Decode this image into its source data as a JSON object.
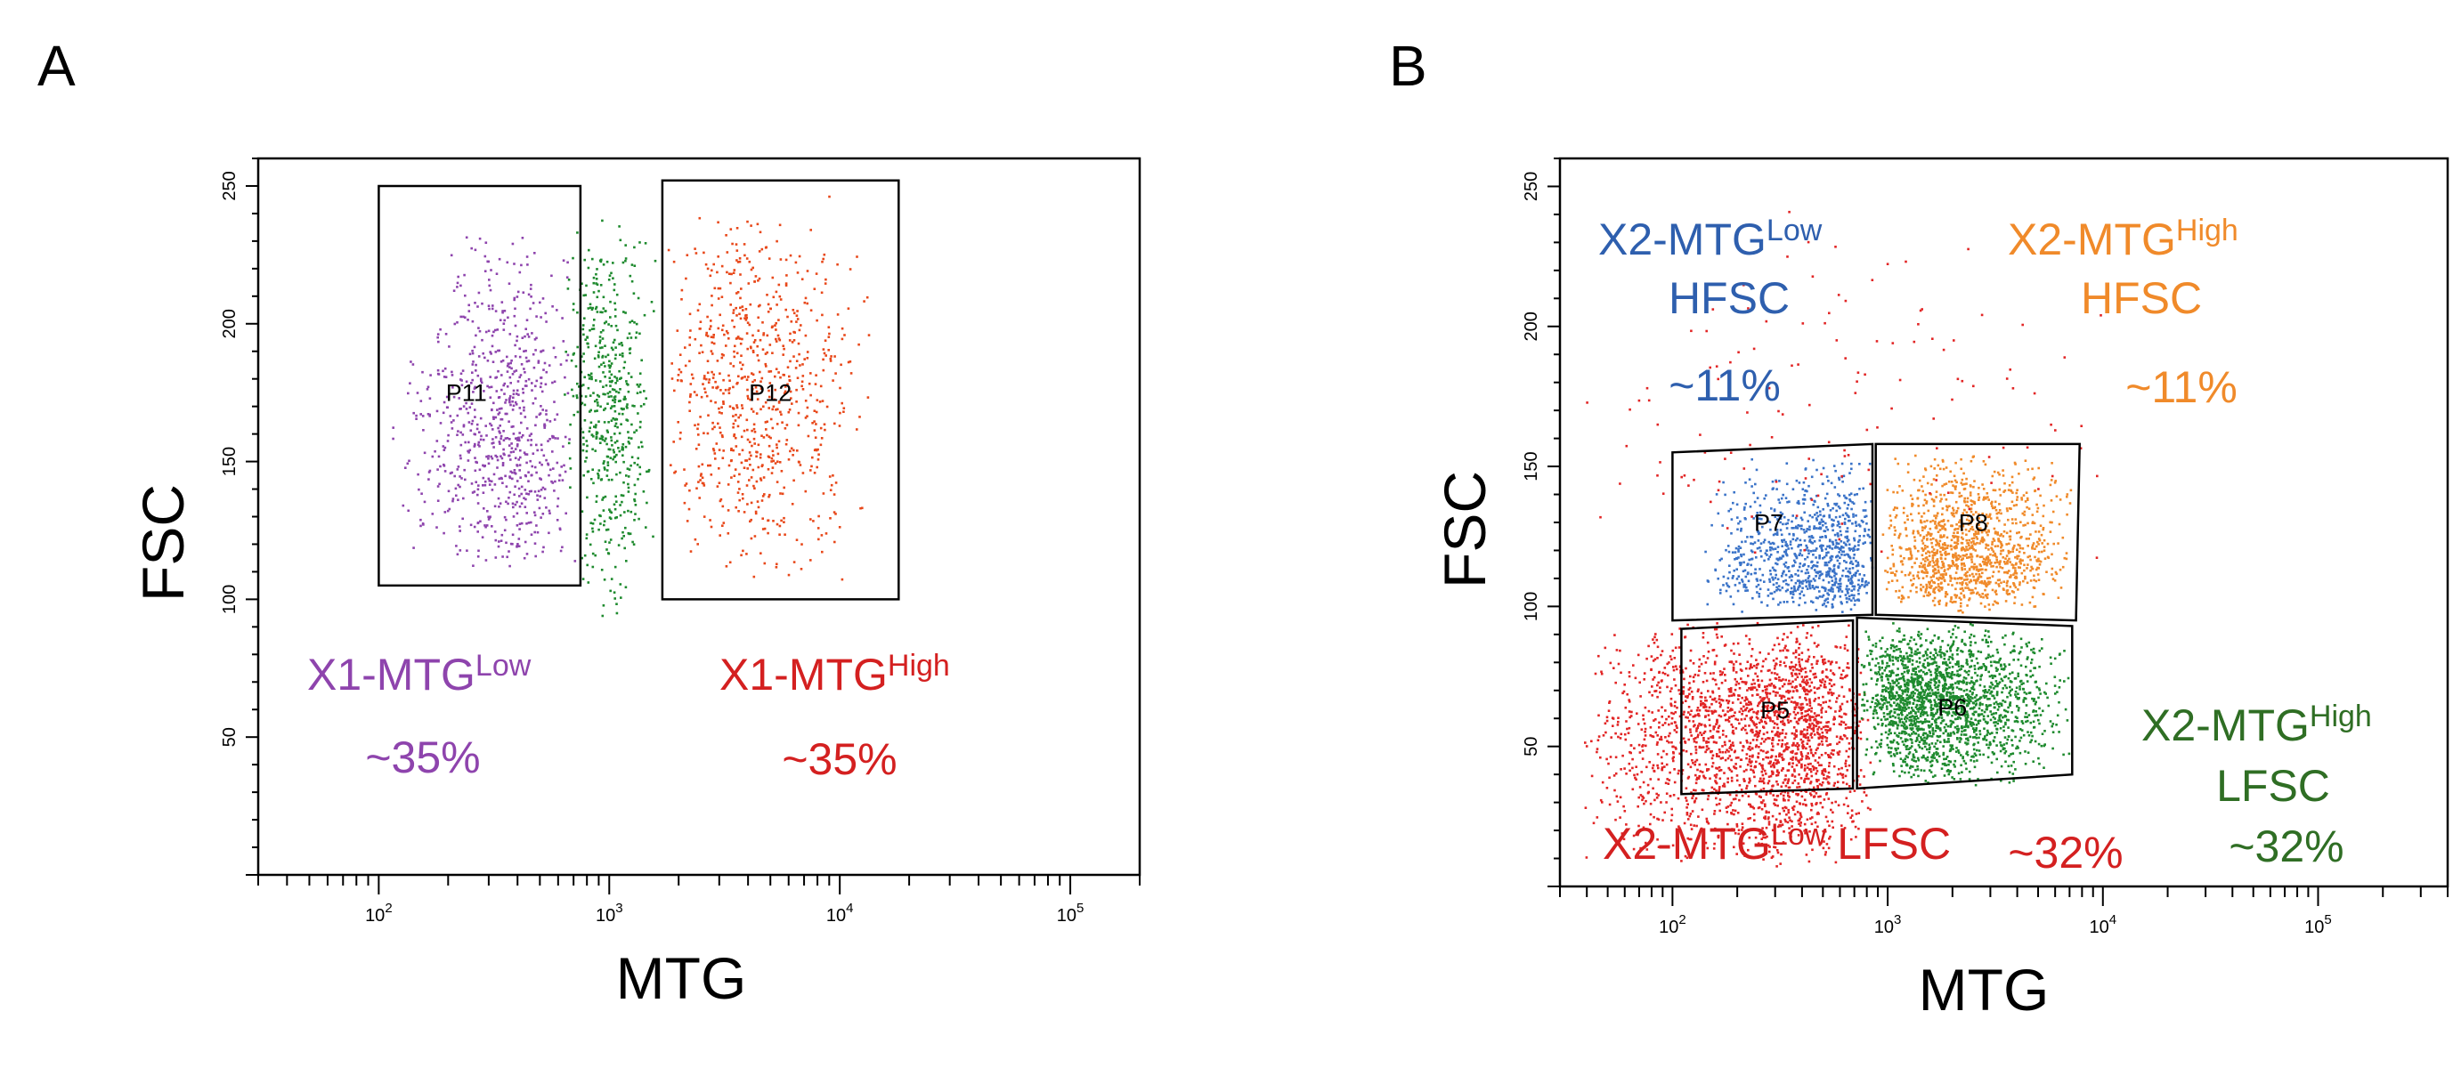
{
  "chart_data": [
    {
      "type": "scatter",
      "panel_label": "A",
      "xlabel": "MTG",
      "ylabel": "FSC",
      "x_scale": "log",
      "xlim": [
        30,
        200000
      ],
      "ylim": [
        0,
        260
      ],
      "x_ticks": [
        100,
        1000,
        10000,
        100000
      ],
      "x_tick_labels": [
        {
          "base": "10",
          "exp": "2"
        },
        {
          "base": "10",
          "exp": "3"
        },
        {
          "base": "10",
          "exp": "4"
        },
        {
          "base": "10",
          "exp": "5"
        }
      ],
      "y_ticks": [
        50,
        100,
        150,
        200,
        250
      ],
      "y_tick_labels": [
        "50",
        "100",
        "150",
        "200",
        "250"
      ],
      "gates": [
        {
          "name": "P11",
          "corners": [
            [
              100,
              105
            ],
            [
              750,
              105
            ],
            [
              750,
              250
            ],
            [
              100,
              250
            ]
          ],
          "label_at": [
            240,
            172
          ]
        },
        {
          "name": "P12",
          "corners": [
            [
              1700,
              100
            ],
            [
              18000,
              100
            ],
            [
              18000,
              252
            ],
            [
              1700,
              252
            ]
          ],
          "label_at": [
            5000,
            172
          ]
        }
      ],
      "series": [
        {
          "color": "#8e44ad",
          "clusters": [
            {
              "x_log10": [
                2.05,
                2.85
              ],
              "y": [
                110,
                235
              ],
              "n": 750,
              "peak_x_log10": 2.62,
              "peak_y": 150
            }
          ]
        },
        {
          "color": "#1e8a2e",
          "clusters": [
            {
              "x_log10": [
                2.8,
                3.2
              ],
              "y": [
                92,
                242
              ],
              "n": 520,
              "peak_x_log10": 3.0,
              "peak_y": 170
            }
          ]
        },
        {
          "color": "#e8481a",
          "clusters": [
            {
              "x_log10": [
                3.23,
                4.15
              ],
              "y": [
                105,
                248
              ],
              "n": 750,
              "peak_x_log10": 3.55,
              "peak_y": 175
            }
          ]
        }
      ],
      "populations": [
        {
          "name": "X1-MTG",
          "superscript": "Low",
          "percent": "~35%",
          "color": "#8e44ad"
        },
        {
          "name": "X1-MTG",
          "superscript": "High",
          "percent": "~35%",
          "color": "#d42020"
        }
      ]
    },
    {
      "type": "scatter",
      "panel_label": "B",
      "xlabel": "MTG",
      "ylabel": "FSC",
      "x_scale": "log",
      "xlim": [
        30,
        400000
      ],
      "ylim": [
        0,
        260
      ],
      "x_ticks": [
        100,
        1000,
        10000,
        100000
      ],
      "x_tick_labels": [
        {
          "base": "10",
          "exp": "2"
        },
        {
          "base": "10",
          "exp": "3"
        },
        {
          "base": "10",
          "exp": "4"
        },
        {
          "base": "10",
          "exp": "5"
        }
      ],
      "y_ticks": [
        50,
        100,
        150,
        200,
        250
      ],
      "y_tick_labels": [
        "50",
        "100",
        "150",
        "200",
        "250"
      ],
      "gates": [
        {
          "name": "P7",
          "corners": [
            [
              100,
              95
            ],
            [
              850,
              97
            ],
            [
              850,
              158
            ],
            [
              100,
              155
            ]
          ],
          "label_at": [
            280,
            127
          ]
        },
        {
          "name": "P8",
          "corners": [
            [
              880,
              97
            ],
            [
              7500,
              95
            ],
            [
              7800,
              158
            ],
            [
              880,
              158
            ]
          ],
          "label_at": [
            2500,
            127
          ]
        },
        {
          "name": "P5",
          "corners": [
            [
              110,
              33
            ],
            [
              690,
              35
            ],
            [
              690,
              95
            ],
            [
              110,
              92
            ]
          ],
          "label_at": [
            300,
            60
          ]
        },
        {
          "name": "P6",
          "corners": [
            [
              720,
              35
            ],
            [
              7200,
              40
            ],
            [
              7200,
              93
            ],
            [
              720,
              96
            ]
          ],
          "label_at": [
            2000,
            61
          ]
        }
      ],
      "series": [
        {
          "color": "#3a73c8",
          "clusters": [
            {
              "x_log10": [
                2.1,
                2.93
              ],
              "y": [
                98,
                155
              ],
              "n": 900,
              "peak_x_log10": 2.82,
              "peak_y": 108
            }
          ]
        },
        {
          "color": "#f08a2a",
          "clusters": [
            {
              "x_log10": [
                2.96,
                3.86
              ],
              "y": [
                98,
                157
              ],
              "n": 1200,
              "peak_x_log10": 3.3,
              "peak_y": 112
            }
          ]
        },
        {
          "color": "#e22525",
          "clusters": [
            {
              "x_log10": [
                1.55,
                2.92
              ],
              "y": [
                5,
                96
              ],
              "n": 2100,
              "peak_x_log10": 2.62,
              "peak_y": 60
            },
            {
              "x_log10": [
                1.5,
                4.2
              ],
              "y": [
                100,
                250
              ],
              "n": 130,
              "peak_x_log10": 2.8,
              "peak_y": 170
            }
          ]
        },
        {
          "color": "#1e8a2e",
          "clusters": [
            {
              "x_log10": [
                2.86,
                3.85
              ],
              "y": [
                36,
                95
              ],
              "n": 1900,
              "peak_x_log10": 3.1,
              "peak_y": 68
            }
          ]
        }
      ],
      "populations": [
        {
          "name": "X2-MTG",
          "superscript": "Low",
          "suffix": "HFSC",
          "percent": "~11%",
          "color": "#2e5fae"
        },
        {
          "name": "X2-MTG",
          "superscript": "High",
          "suffix": "HFSC",
          "percent": "~11%",
          "color": "#f08a2a"
        },
        {
          "name": "X2-MTG",
          "superscript": "Low",
          "suffix": "LFSC",
          "percent": "~32%",
          "color": "#d42020"
        },
        {
          "name": "X2-MTG",
          "superscript": "High",
          "suffix": "LFSC",
          "percent": "~32%",
          "color": "#2f6e24"
        }
      ]
    }
  ]
}
